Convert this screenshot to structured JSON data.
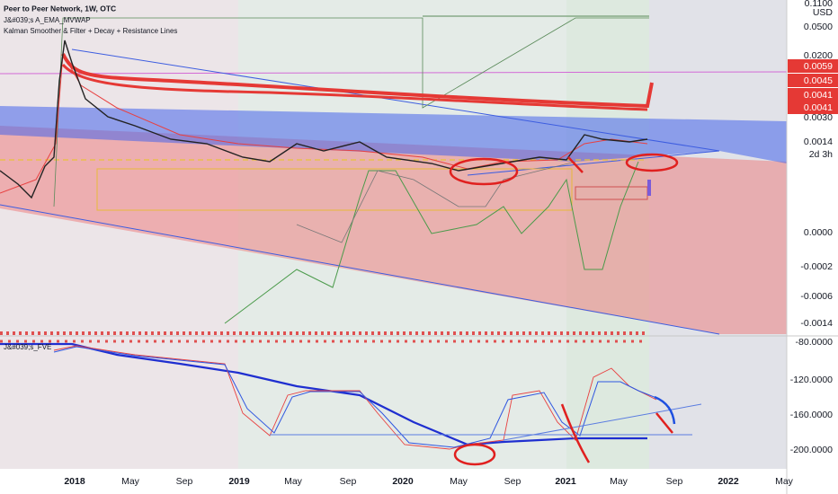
{
  "header": {
    "title": "Peer to Peer Network, 1W, OTC",
    "indicators": [
      "J&#039;s A_EMA_MVWAP",
      "Kalman Smoother & Filter + Decay + Resistance Lines"
    ]
  },
  "price_axis": {
    "labels": [
      "0.1100",
      "USD",
      "0.0500",
      "0.0200",
      "0.0030",
      "0.0000",
      "-0.0002",
      "-0.0006",
      "-0.0014"
    ],
    "badges": [
      "0.0059",
      "0.0045",
      "0.0041",
      "0.0041"
    ],
    "current": {
      "price": "0.0014",
      "countdown": "2d 3h"
    }
  },
  "indicator_pane": {
    "name": "J&#039;s_FVE",
    "labels": [
      "-80.0000",
      "-120.0000",
      "-160.0000",
      "-200.0000"
    ]
  },
  "time_axis": {
    "labels": [
      "2018",
      "May",
      "Sep",
      "2019",
      "May",
      "Sep",
      "2020",
      "May",
      "Sep",
      "2021",
      "May",
      "Sep",
      "2022",
      "May"
    ]
  }
}
